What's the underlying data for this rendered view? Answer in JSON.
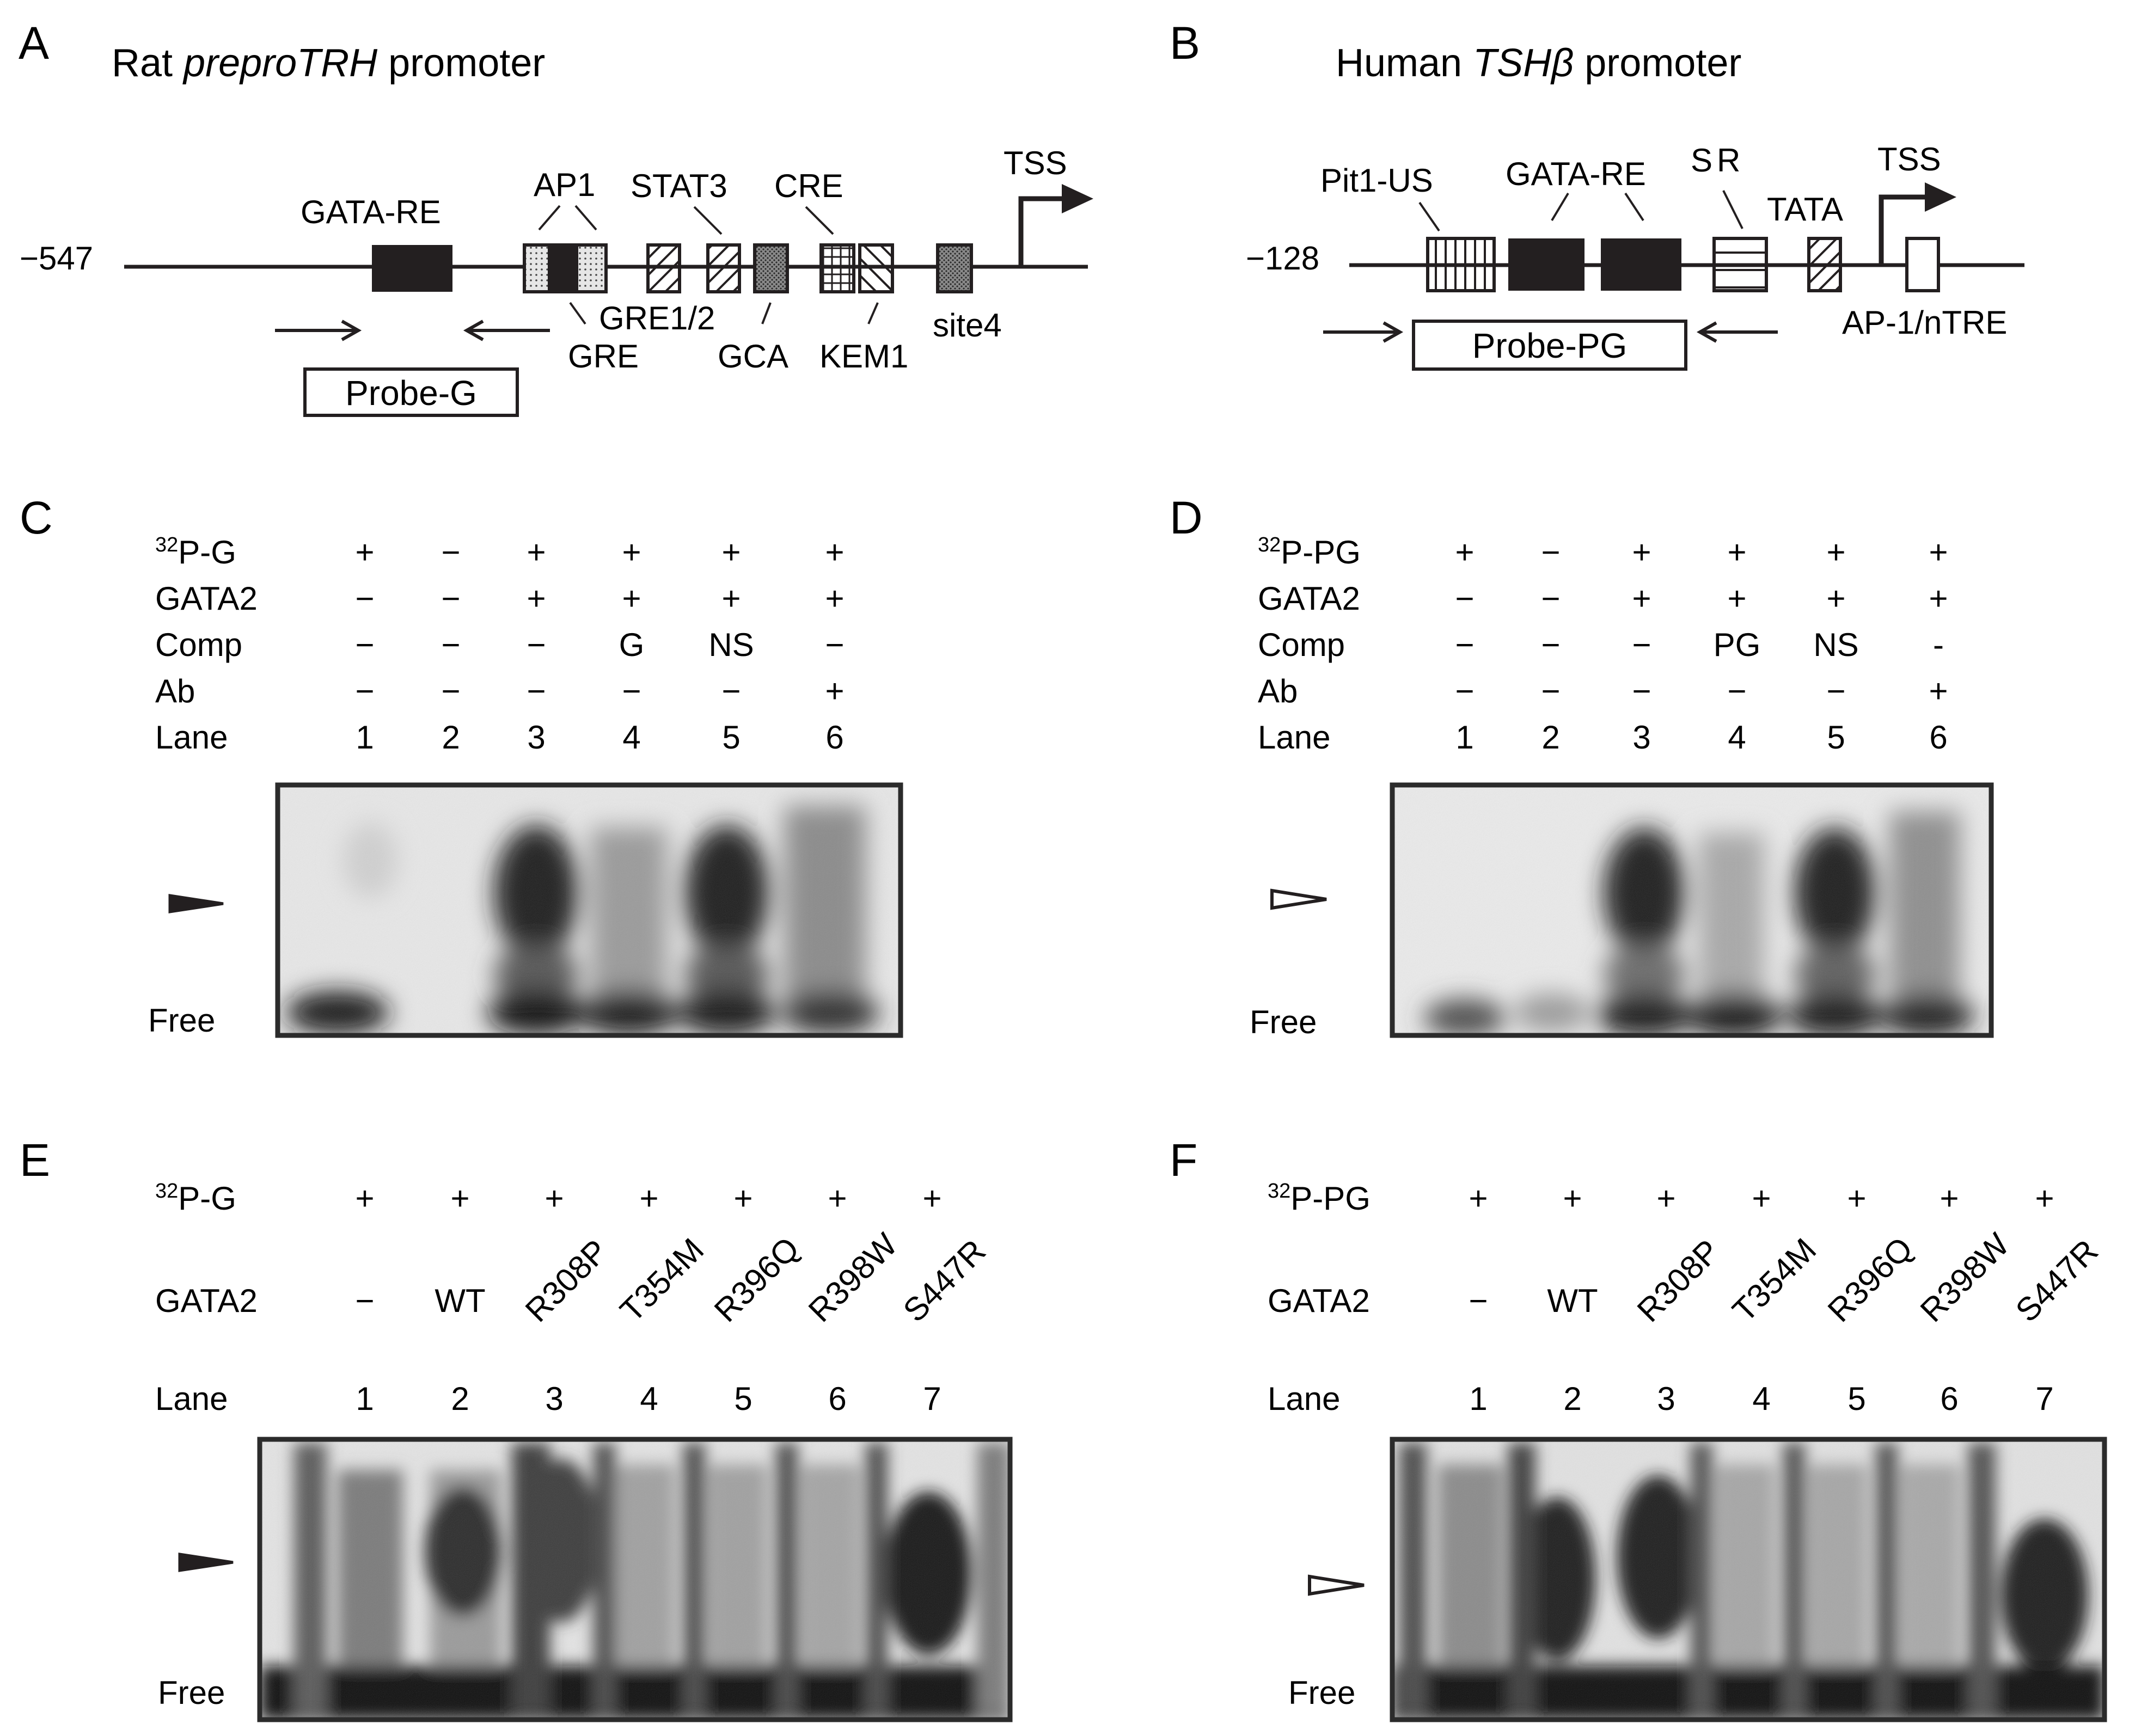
{
  "panels": {
    "A": {
      "letter": "A",
      "title_prefix": "Rat ",
      "title_gene": "preproTRH",
      "title_suffix": " promoter",
      "position_label": "−547",
      "elements": {
        "gata_re": "GATA-RE",
        "ap1": "AP1",
        "stat3": "STAT3",
        "cre": "CRE",
        "tss": "TSS",
        "gre1_2": "GRE1/2",
        "gre": "GRE",
        "gca": "GCA",
        "kem1": "KEM1",
        "site4": "site4"
      },
      "probe": "Probe-G"
    },
    "B": {
      "letter": "B",
      "title_prefix": "Human ",
      "title_gene": "TSHβ",
      "title_suffix": " promoter",
      "position_label": "−128",
      "elements": {
        "pit1_us": "Pit1-US",
        "gata_re": "GATA-RE",
        "sr": "SR",
        "tata": "TATA",
        "tss": "TSS",
        "ap1_ntre": "AP-1/nTRE"
      },
      "probe": "Probe-PG"
    },
    "C": {
      "letter": "C",
      "rows": [
        {
          "sup": "32",
          "label": "P-G",
          "values": [
            "+",
            "−",
            "+",
            "+",
            "+",
            "+"
          ]
        },
        {
          "sup": "",
          "label": "GATA2",
          "values": [
            "−",
            "−",
            "+",
            "+",
            "+",
            "+"
          ]
        },
        {
          "sup": "",
          "label": "Comp",
          "values": [
            "−",
            "−",
            "−",
            "G",
            "NS",
            "−"
          ]
        },
        {
          "sup": "",
          "label": "Ab",
          "values": [
            "−",
            "−",
            "−",
            "−",
            "−",
            "+"
          ]
        },
        {
          "sup": "",
          "label": "Lane",
          "values": [
            "1",
            "2",
            "3",
            "4",
            "5",
            "6"
          ]
        }
      ],
      "free_label": "Free",
      "arrow_style": "filled"
    },
    "D": {
      "letter": "D",
      "rows": [
        {
          "sup": "32",
          "label": "P-PG",
          "values": [
            "+",
            "−",
            "+",
            "+",
            "+",
            "+"
          ]
        },
        {
          "sup": "",
          "label": "GATA2",
          "values": [
            "−",
            "−",
            "+",
            "+",
            "+",
            "+"
          ]
        },
        {
          "sup": "",
          "label": "Comp",
          "values": [
            "−",
            "−",
            "−",
            "PG",
            "NS",
            "-"
          ]
        },
        {
          "sup": "",
          "label": "Ab",
          "values": [
            "−",
            "−",
            "−",
            "−",
            "−",
            "+"
          ]
        },
        {
          "sup": "",
          "label": "Lane",
          "values": [
            "1",
            "2",
            "3",
            "4",
            "5",
            "6"
          ]
        }
      ],
      "free_label": "Free",
      "arrow_style": "open"
    },
    "E": {
      "letter": "E",
      "probe_row": {
        "sup": "32",
        "label": "P-G",
        "values": [
          "+",
          "+",
          "+",
          "+",
          "+",
          "+",
          "+"
        ]
      },
      "gata_row": {
        "label": "GATA2",
        "values": [
          "−",
          "WT",
          "R308P",
          "T354M",
          "R396Q",
          "R398W",
          "S447R"
        ]
      },
      "lane_row": {
        "label": "Lane",
        "values": [
          "1",
          "2",
          "3",
          "4",
          "5",
          "6",
          "7"
        ]
      },
      "free_label": "Free",
      "arrow_style": "filled"
    },
    "F": {
      "letter": "F",
      "probe_row": {
        "sup": "32",
        "label": "P-PG",
        "values": [
          "+",
          "+",
          "+",
          "+",
          "+",
          "+",
          "+"
        ]
      },
      "gata_row": {
        "label": "GATA2",
        "values": [
          "−",
          "WT",
          "R308P",
          "T354M",
          "R396Q",
          "R398W",
          "S447R"
        ]
      },
      "lane_row": {
        "label": "Lane",
        "values": [
          "1",
          "2",
          "3",
          "4",
          "5",
          "6",
          "7"
        ]
      },
      "free_label": "Free",
      "arrow_style": "open"
    }
  },
  "colors": {
    "ink": "#231f20",
    "gel_background": "#e9e9e9",
    "band_dark": "#1a1a1a"
  }
}
